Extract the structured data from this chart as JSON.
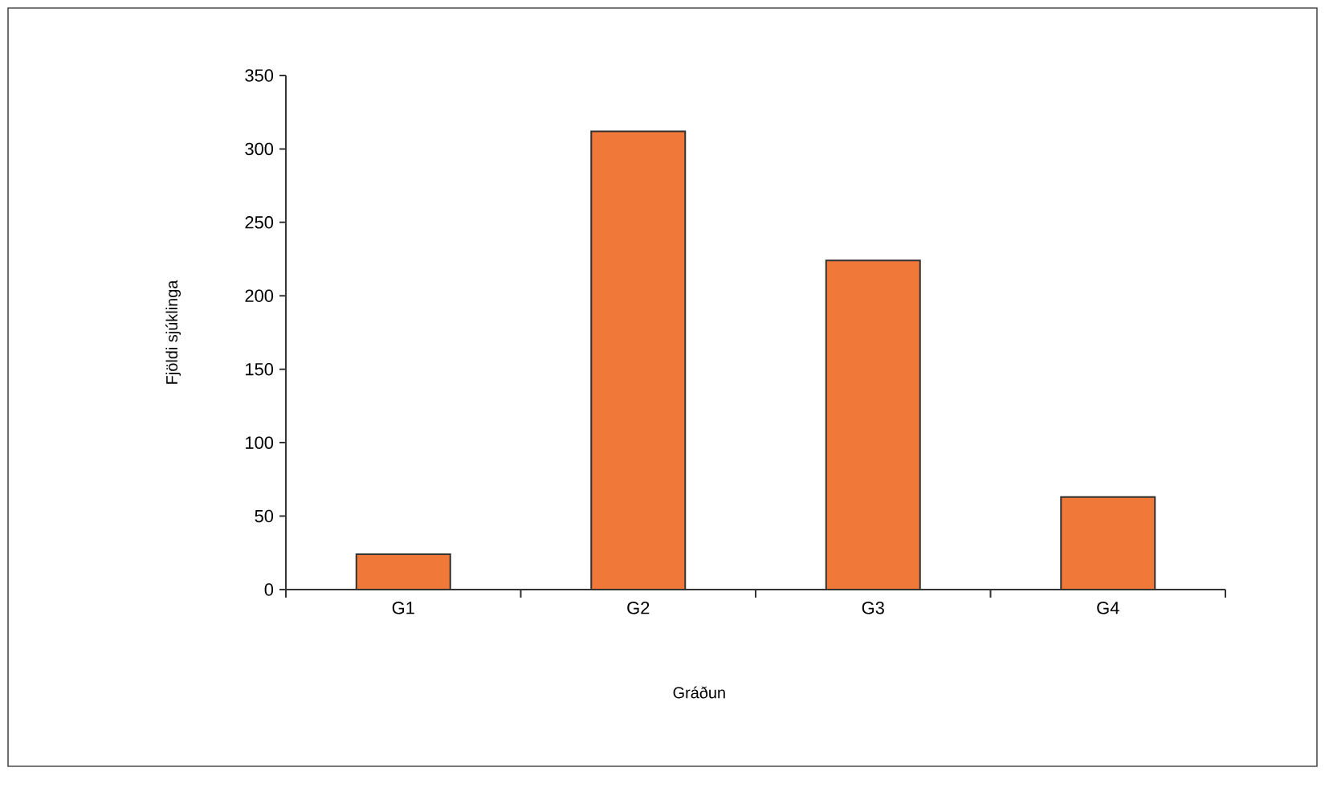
{
  "chart_data": {
    "type": "bar",
    "xlabel": "Gráðun",
    "ylabel": "Fjöldi sjúklinga",
    "categories": [
      "G1",
      "G2",
      "G3",
      "G4"
    ],
    "values": [
      24,
      312,
      224,
      63
    ],
    "color": "#f07838",
    "ylim": [
      0,
      350
    ],
    "yticks": [
      0,
      50,
      100,
      150,
      200,
      250,
      300,
      350
    ],
    "grid": false
  }
}
